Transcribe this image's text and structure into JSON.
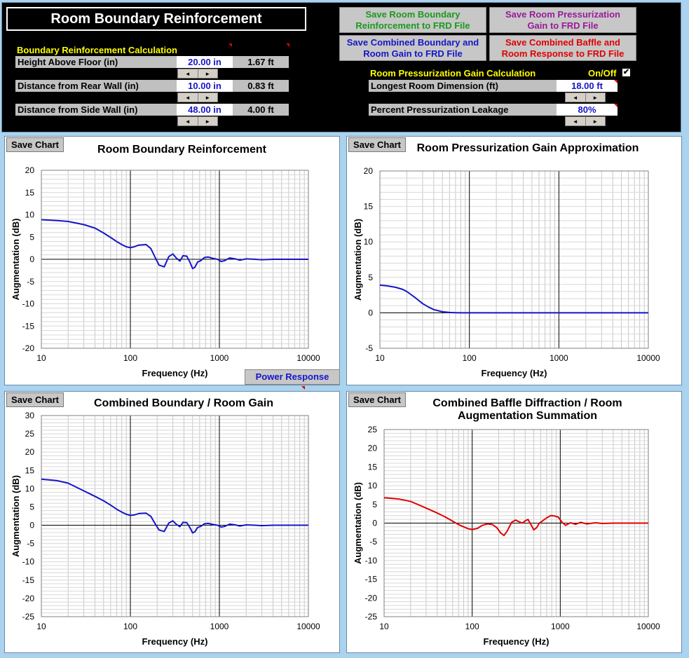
{
  "title": "Room Boundary Reinforcement",
  "buttons": {
    "save_boundary": "Save Room Boundary\nReinforcement to FRD File",
    "save_pressurization": "Save Room Pressurization\nGain to FRD File",
    "save_combined_gain": "Save Combined Boundary and\nRoom Gain to FRD File",
    "save_combined_baffle": "Save Combined Baffle and\nRoom Response to FRD File",
    "power_response": "Power Response",
    "save_chart": "Save Chart"
  },
  "colors": {
    "green": "#1a9a1a",
    "purple": "#9a1a9a",
    "blue": "#1515c8",
    "red": "#e00000"
  },
  "boundary": {
    "section_label": "Boundary Reinforcement Calculation",
    "params": [
      {
        "label": "Height Above Floor (in)",
        "value": "20.00 in",
        "feet": "1.67 ft"
      },
      {
        "label": "Distance from Rear Wall (in)",
        "value": "10.00 in",
        "feet": "0.83 ft"
      },
      {
        "label": "Distance from Side Wall (in)",
        "value": "48.00 in",
        "feet": "4.00 ft"
      }
    ]
  },
  "pressurization": {
    "section_label": "Room Pressurization Gain Calculation",
    "onoff_label": "On/Off",
    "onoff_checked": "✔",
    "params": [
      {
        "label": "Longest Room Dimension (ft)",
        "value": "18.00 ft"
      },
      {
        "label": "Percent Pressurization Leakage",
        "value": "80%"
      }
    ]
  },
  "spinner": {
    "left": "◄",
    "right": "►"
  },
  "chart_data": [
    {
      "type": "line",
      "title": "Room Boundary Reinforcement",
      "xlabel": "Frequency (Hz)",
      "ylabel": "Augmentation (dB)",
      "xscale": "log",
      "xlim": [
        10,
        10000
      ],
      "ylim": [
        -20,
        20
      ],
      "ystep": 5,
      "xticks": [
        "10",
        "100",
        "1000",
        "10000"
      ],
      "grid": true,
      "color": "#1515c8",
      "x": [
        10,
        15,
        20,
        30,
        40,
        50,
        60,
        70,
        80,
        90,
        100,
        110,
        125,
        150,
        170,
        190,
        210,
        240,
        270,
        300,
        330,
        360,
        390,
        430,
        470,
        500,
        530,
        570,
        620,
        680,
        750,
        850,
        950,
        1050,
        1150,
        1300,
        1500,
        1700,
        2000,
        2500,
        3000,
        4000,
        5000,
        6000,
        7000,
        8000,
        10000
      ],
      "y": [
        8.9,
        8.7,
        8.5,
        7.8,
        7.0,
        5.9,
        4.9,
        4.0,
        3.3,
        2.8,
        2.6,
        2.8,
        3.2,
        3.3,
        2.4,
        0.4,
        -1.3,
        -1.7,
        0.6,
        1.2,
        0.2,
        -0.4,
        0.8,
        0.7,
        -0.8,
        -2.1,
        -1.8,
        -0.6,
        -0.3,
        0.4,
        0.5,
        0.2,
        0.0,
        -0.5,
        -0.3,
        0.3,
        0.1,
        -0.2,
        0.1,
        0.0,
        -0.1,
        0.0,
        0.0,
        0.0,
        0.0,
        0.0,
        0.0
      ]
    },
    {
      "type": "line",
      "title": "Room Pressurization Gain Approximation",
      "xlabel": "Frequency (Hz)",
      "ylabel": "Augmentation (dB)",
      "xscale": "log",
      "xlim": [
        10,
        10000
      ],
      "ylim": [
        -5,
        20
      ],
      "ystep": 5,
      "xticks": [
        "10",
        "100",
        "1000",
        "10000"
      ],
      "grid": true,
      "color": "#1515c8",
      "x": [
        10,
        12,
        15,
        18,
        20,
        25,
        30,
        35,
        40,
        50,
        60,
        70,
        80,
        100,
        200,
        1000,
        10000
      ],
      "y": [
        3.9,
        3.8,
        3.6,
        3.3,
        3.0,
        2.1,
        1.3,
        0.8,
        0.45,
        0.15,
        0.05,
        0.02,
        0.0,
        0.0,
        0.0,
        0.0,
        0.0
      ]
    },
    {
      "type": "line",
      "title": "Combined Boundary / Room Gain",
      "xlabel": "Frequency (Hz)",
      "ylabel": "Augmentation (dB)",
      "xscale": "log",
      "xlim": [
        10,
        10000
      ],
      "ylim": [
        -25,
        30
      ],
      "ystep": 5,
      "xticks": [
        "10",
        "100",
        "1000",
        "10000"
      ],
      "grid": true,
      "color": "#1515c8",
      "x": [
        10,
        15,
        20,
        30,
        40,
        50,
        60,
        70,
        80,
        90,
        100,
        110,
        125,
        150,
        170,
        190,
        210,
        240,
        270,
        300,
        330,
        360,
        390,
        430,
        470,
        500,
        530,
        570,
        620,
        680,
        750,
        850,
        950,
        1050,
        1150,
        1300,
        1500,
        1700,
        2000,
        2500,
        3000,
        4000,
        5000,
        6000,
        7000,
        8000,
        10000
      ],
      "y": [
        12.6,
        12.2,
        11.5,
        9.4,
        7.9,
        6.7,
        5.5,
        4.4,
        3.6,
        3.0,
        2.7,
        2.8,
        3.2,
        3.3,
        2.4,
        0.4,
        -1.3,
        -1.7,
        0.6,
        1.2,
        0.2,
        -0.4,
        0.8,
        0.7,
        -0.8,
        -2.1,
        -1.8,
        -0.6,
        -0.3,
        0.4,
        0.5,
        0.2,
        0.0,
        -0.5,
        -0.3,
        0.3,
        0.1,
        -0.2,
        0.1,
        0.0,
        -0.1,
        0.0,
        0.0,
        0.0,
        0.0,
        0.0,
        0.0
      ]
    },
    {
      "type": "line",
      "title": "Combined Baffle Diffraction / Room\nAugmentation Summation",
      "xlabel": "Frequency (Hz)",
      "ylabel": "Augmentation (dB)",
      "xscale": "log",
      "xlim": [
        10,
        10000
      ],
      "ylim": [
        -25,
        25
      ],
      "ystep": 5,
      "xticks": [
        "10",
        "100",
        "1000",
        "10000"
      ],
      "grid": true,
      "color": "#e00000",
      "x": [
        10,
        15,
        20,
        30,
        40,
        50,
        60,
        70,
        80,
        90,
        100,
        115,
        130,
        150,
        170,
        190,
        210,
        230,
        250,
        280,
        310,
        340,
        370,
        400,
        430,
        470,
        500,
        540,
        580,
        630,
        700,
        780,
        870,
        950,
        1050,
        1150,
        1300,
        1500,
        1700,
        2000,
        2500,
        3000,
        4000,
        5000,
        7000,
        10000
      ],
      "y": [
        6.8,
        6.4,
        5.8,
        4.0,
        2.7,
        1.6,
        0.5,
        -0.4,
        -1.0,
        -1.5,
        -1.7,
        -1.4,
        -0.6,
        -0.2,
        -0.4,
        -1.2,
        -2.6,
        -3.3,
        -2.1,
        0.2,
        0.8,
        0.4,
        0.0,
        0.6,
        1.0,
        -0.6,
        -1.8,
        -1.2,
        0.0,
        0.6,
        1.4,
        2.0,
        1.9,
        1.6,
        0.2,
        -0.6,
        0.1,
        -0.3,
        0.2,
        -0.2,
        0.1,
        -0.1,
        0.0,
        0.0,
        0.0,
        0.0
      ]
    }
  ]
}
